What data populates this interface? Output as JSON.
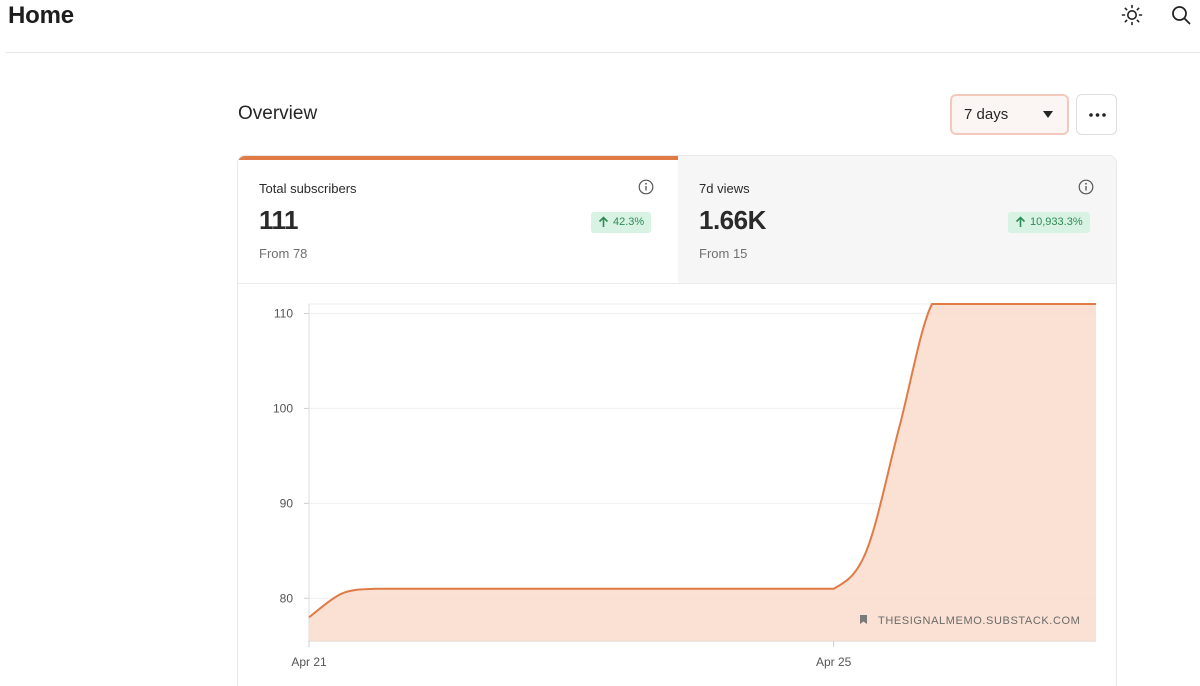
{
  "header": {
    "title": "Home",
    "theme_icon": "sun-icon",
    "search_icon": "search-icon"
  },
  "overview": {
    "title": "Overview",
    "range_selected": "7 days",
    "more_icon": "more-icon"
  },
  "stats": [
    {
      "label": "Total subscribers",
      "value": "111",
      "change": "42.3%",
      "from": "From 78",
      "active": true
    },
    {
      "label": "7d views",
      "value": "1.66K",
      "change": "10,933.3%",
      "from": "From 15",
      "active": false
    }
  ],
  "colors": {
    "accent": "#e07b45",
    "area_fill": "#f9dccd",
    "badge_bg": "#d8f3e3",
    "badge_text": "#2f8a55"
  },
  "chart_data": {
    "type": "area",
    "series": [
      {
        "x": [
          0,
          0.25,
          0.5,
          0.75,
          1,
          1.25,
          1.5,
          1.75,
          2,
          2.25,
          2.5,
          2.75,
          3,
          3.25,
          3.5,
          3.75,
          4,
          4.25,
          4.5,
          4.75,
          5,
          5.25,
          5.5,
          5.75,
          6
        ],
        "y": [
          78,
          80.5,
          81,
          81,
          81,
          81,
          81,
          81,
          81,
          81,
          81,
          81,
          81,
          81,
          81,
          81,
          81,
          85,
          98,
          111,
          111,
          111,
          111,
          111,
          111
        ]
      }
    ],
    "x_tick_labels": [
      "Apr 21",
      "Apr 25"
    ],
    "x_tick_positions": [
      0,
      4
    ],
    "y_ticks": [
      80,
      90,
      100,
      110
    ],
    "ylim": [
      75.5,
      111
    ],
    "xlim": [
      0,
      6
    ],
    "grid": true,
    "watermark": "THESIGNALMEMO.SUBSTACK.COM"
  }
}
